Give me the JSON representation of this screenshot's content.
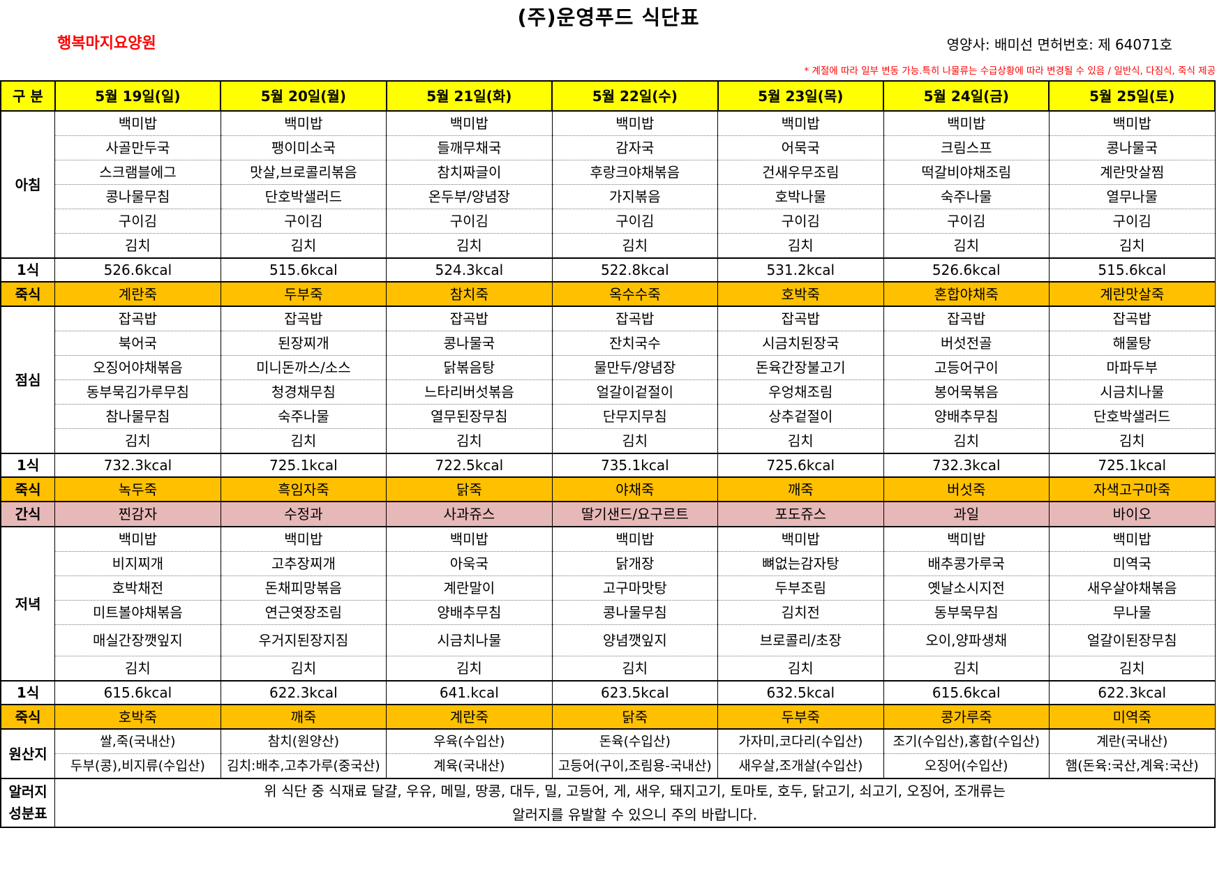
{
  "header": {
    "title": "(주)운영푸드 식단표",
    "facility": "행복마지요양원",
    "dietitian": "영양사: 배미선 면허번호: 제 64071호",
    "notice": "* 계절에 따라 일부 변동 가능.특히 나물류는 수급상황에 따라 변경될 수 있음 / 일반식, 다짐식, 죽식 제공"
  },
  "table": {
    "corner_label": "구 분",
    "days": [
      "5월 19일(일)",
      "5월 20일(월)",
      "5월 21일(화)",
      "5월 22일(수)",
      "5월 23일(목)",
      "5월 24일(금)",
      "5월 25일(토)"
    ],
    "breakfast": {
      "label": "아침",
      "rows": [
        [
          "백미밥",
          "백미밥",
          "백미밥",
          "백미밥",
          "백미밥",
          "백미밥",
          "백미밥"
        ],
        [
          "사골만두국",
          "팽이미소국",
          "들깨무채국",
          "감자국",
          "어묵국",
          "크림스프",
          "콩나물국"
        ],
        [
          "스크램블에그",
          "맛살,브로콜리볶음",
          "참치짜글이",
          "후랑크야채볶음",
          "건새우무조림",
          "떡갈비야채조림",
          "계란맛살찜"
        ],
        [
          "콩나물무침",
          "단호박샐러드",
          "온두부/양념장",
          "가지볶음",
          "호박나물",
          "숙주나물",
          "열무나물"
        ],
        [
          "구이김",
          "구이김",
          "구이김",
          "구이김",
          "구이김",
          "구이김",
          "구이김"
        ],
        [
          "김치",
          "김치",
          "김치",
          "김치",
          "김치",
          "김치",
          "김치"
        ]
      ],
      "kcal_label": "1식",
      "kcal": [
        "526.6kcal",
        "515.6kcal",
        "524.3kcal",
        "522.8kcal",
        "531.2kcal",
        "526.6kcal",
        "515.6kcal"
      ],
      "porridge_label": "죽식",
      "porridge": [
        "계란죽",
        "두부죽",
        "참치죽",
        "옥수수죽",
        "호박죽",
        "혼합야채죽",
        "계란맛살죽"
      ]
    },
    "lunch": {
      "label": "점심",
      "rows": [
        [
          "잡곡밥",
          "잡곡밥",
          "잡곡밥",
          "잡곡밥",
          "잡곡밥",
          "잡곡밥",
          "잡곡밥"
        ],
        [
          "북어국",
          "된장찌개",
          "콩나물국",
          "잔치국수",
          "시금치된장국",
          "버섯전골",
          "해물탕"
        ],
        [
          "오징어야채볶음",
          "미니돈까스/소스",
          "닭볶음탕",
          "물만두/양념장",
          "돈육간장불고기",
          "고등어구이",
          "마파두부"
        ],
        [
          "동부묵김가루무침",
          "청경채무침",
          "느타리버섯볶음",
          "얼갈이겉절이",
          "우엉채조림",
          "봉어묵볶음",
          "시금치나물"
        ],
        [
          "참나물무침",
          "숙주나물",
          "열무된장무침",
          "단무지무침",
          "상추겉절이",
          "양배추무침",
          "단호박샐러드"
        ],
        [
          "김치",
          "김치",
          "김치",
          "김치",
          "김치",
          "김치",
          "김치"
        ]
      ],
      "kcal_label": "1식",
      "kcal": [
        "732.3kcal",
        "725.1kcal",
        "722.5kcal",
        "735.1kcal",
        "725.6kcal",
        "732.3kcal",
        "725.1kcal"
      ],
      "porridge_label": "죽식",
      "porridge": [
        "녹두죽",
        "흑임자죽",
        "닭죽",
        "야채죽",
        "깨죽",
        "버섯죽",
        "자색고구마죽"
      ]
    },
    "snack": {
      "label": "간식",
      "items": [
        "찐감자",
        "수정과",
        "사과쥬스",
        "딸기샌드/요구르트",
        "포도쥬스",
        "과일",
        "바이오"
      ]
    },
    "dinner": {
      "label": "저녁",
      "rows": [
        [
          "백미밥",
          "백미밥",
          "백미밥",
          "백미밥",
          "백미밥",
          "백미밥",
          "백미밥"
        ],
        [
          "비지찌개",
          "고추장찌개",
          "아욱국",
          "닭개장",
          "뼈없는감자탕",
          "배추콩가루국",
          "미역국"
        ],
        [
          "호박채전",
          "돈채피망볶음",
          "계란말이",
          "고구마맛탕",
          "두부조림",
          "옛날소시지전",
          "새우살야채볶음"
        ],
        [
          "미트볼야채볶음",
          "연근엿장조림",
          "양배추무침",
          "콩나물무침",
          "김치전",
          "동부묵무침",
          "무나물"
        ],
        [
          "매실간장깻잎지",
          "우거지된장지짐",
          "시금치나물",
          "양념깻잎지",
          "브로콜리/초장",
          "오이,양파생채",
          "얼갈이된장무침"
        ],
        [
          "김치",
          "김치",
          "김치",
          "김치",
          "김치",
          "김치",
          "김치"
        ]
      ],
      "kcal_label": "1식",
      "kcal": [
        "615.6kcal",
        "622.3kcal",
        "641.kcal",
        "623.5kcal",
        "632.5kcal",
        "615.6kcal",
        "622.3kcal"
      ],
      "porridge_label": "죽식",
      "porridge": [
        "호박죽",
        "깨죽",
        "계란죽",
        "닭죽",
        "두부죽",
        "콩가루죽",
        "미역죽"
      ]
    },
    "origin": {
      "label": "원산지",
      "row1": [
        "쌀,죽(국내산)",
        "참치(원양산)",
        "우육(수입산)",
        "돈육(수입산)",
        "가자미,코다리(수입산)",
        "조기(수입산),홍합(수입산)",
        "계란(국내산)"
      ],
      "row2": [
        "두부(콩),비지류(수입산)",
        "김치:배추,고추가루(중국산)",
        "계육(국내산)",
        "고등어(구이,조림용-국내산)",
        "새우살,조개살(수입산)",
        "오징어(수입산)",
        "햄(돈육:국산,계육:국산)"
      ]
    },
    "allergy": {
      "label_line1": "알러지",
      "label_line2": "성분표",
      "line1": "위 식단 중 식재료 달걀, 우유, 메밀, 땅콩, 대두, 밀, 고등어, 게, 새우, 돼지고기, 토마토, 호두, 닭고기, 쇠고기, 오징어, 조개류는",
      "line2": "알러지를 유발할 수 있으니 주의 바랍니다."
    }
  }
}
